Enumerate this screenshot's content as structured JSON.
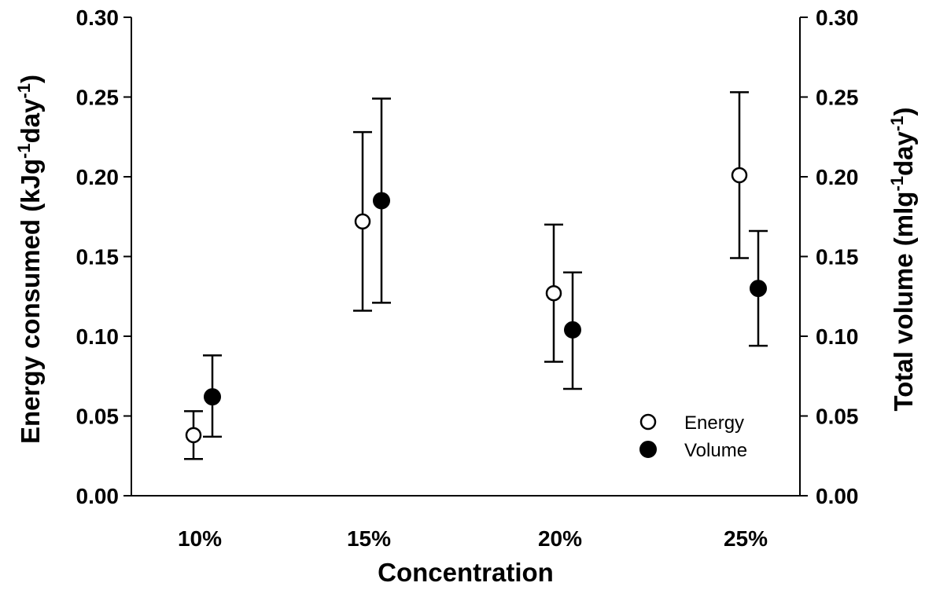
{
  "chart_data": {
    "type": "scatter",
    "xlabel": "Concentration",
    "ylabel_left": {
      "main": "Energy consumed (kJg",
      "sup1": "-1",
      "mid": "day",
      "sup2": "-1",
      "end": ")"
    },
    "ylabel_right": {
      "main": "Total volume (mlg",
      "sup1": "-1",
      "mid": "day",
      "sup2": "-1",
      "end": ")"
    },
    "categories": [
      "10%",
      "15%",
      "20%",
      "25%"
    ],
    "ylim": [
      0,
      0.3
    ],
    "yticks": [
      "0.00",
      "0.05",
      "0.10",
      "0.15",
      "0.20",
      "0.25",
      "0.30"
    ],
    "legend_position": "bottom-right",
    "series": [
      {
        "name": "Energy",
        "marker": "open-circle",
        "values": [
          0.038,
          0.172,
          0.127,
          0.201
        ],
        "err_low": [
          0.023,
          0.116,
          0.084,
          0.149
        ],
        "err_high": [
          0.053,
          0.228,
          0.17,
          0.253
        ]
      },
      {
        "name": "Volume",
        "marker": "filled-circle",
        "values": [
          0.062,
          0.185,
          0.104,
          0.13
        ],
        "err_low": [
          0.037,
          0.121,
          0.067,
          0.094
        ],
        "err_high": [
          0.088,
          0.249,
          0.14,
          0.166
        ]
      }
    ]
  }
}
